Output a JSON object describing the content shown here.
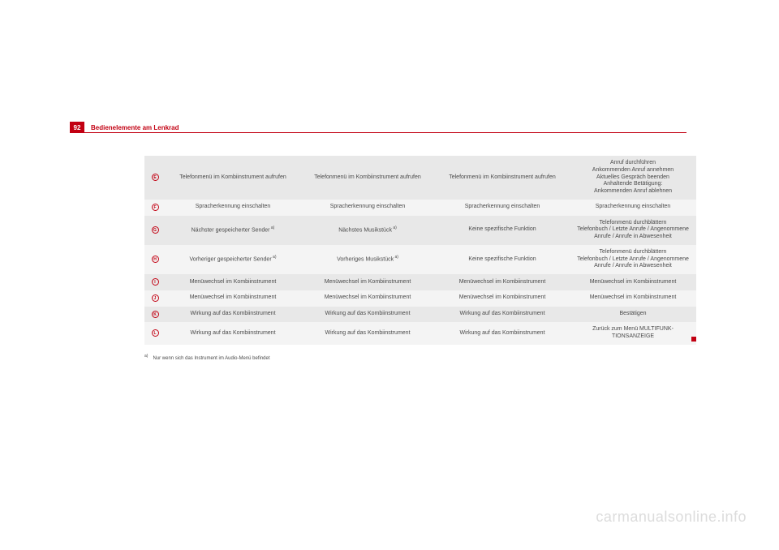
{
  "page_number": "92",
  "section_title": "Bedienelemente am Lenkrad",
  "footnote_marker": "a)",
  "footnote_text": "Nur wenn sich das Instrument im Audio-Menü befindet",
  "watermark": "carmanualsonline.info",
  "table": {
    "row_colors": {
      "dark": "#e8e8e8",
      "light": "#f4f4f4"
    },
    "icon_color": "#c20012",
    "rows": [
      {
        "shade": "dark",
        "icon_letter": "E",
        "cells": [
          "Telefonmenü im Kombiinstrument auf­rufen",
          "Telefonmenü im Kombiinstrument auf­rufen",
          "Telefonmenü im Kombiinstru­ment aufrufen",
          "Anruf durchführen\nAnkommenden Anruf anneh­men\nAktuelles Gespräch beenden\nAnhaltende Betätigung:\nAnkommenden Anruf ablehnen"
        ]
      },
      {
        "shade": "light",
        "icon_letter": "F",
        "cells": [
          "Spracherkennung einschalten",
          "Spracherkennung einschalten",
          "Spracherkennung einschalten",
          "Spracherkennung einschalten"
        ]
      },
      {
        "shade": "dark",
        "icon_letter": "G",
        "cells_fn": [
          0,
          1
        ],
        "cells": [
          "Nächster gespeicherter Sender",
          "Nächstes Musikstück",
          "Keine spezifische Funktion",
          "Telefonmenü durchblättern\nTelefonbuch / Letzte Anrufe / Angenommene Anrufe / Anrufe in Abwesenheit"
        ]
      },
      {
        "shade": "light",
        "icon_letter": "H",
        "cells_fn": [
          0,
          1
        ],
        "cells": [
          "Vorheriger gespeicherter Sender",
          "Vorheriges Musikstück",
          "Keine spezifische Funktion",
          "Telefonmenü durchblättern\nTelefonbuch / Letzte Anrufe / Angenommene Anrufe / Anrufe in Abwesenheit"
        ]
      },
      {
        "shade": "dark",
        "icon_letter": "I",
        "cells": [
          "Menüwechsel im Kombiinstrument",
          "Menüwechsel im Kombiinstrument",
          "Menüwechsel im Kombiinstru­ment",
          "Menüwechsel im Kombiinstru­ment"
        ]
      },
      {
        "shade": "light",
        "icon_letter": "J",
        "cells": [
          "Menüwechsel im Kombiinstrument",
          "Menüwechsel im Kombiinstrument",
          "Menüwechsel im Kombiinstru­ment",
          "Menüwechsel im Kombiinstru­ment"
        ]
      },
      {
        "shade": "dark",
        "icon_letter": "K",
        "cells": [
          "Wirkung auf das Kombiinstrument",
          "Wirkung auf das Kombiinstrument",
          "Wirkung auf das Kombiinstru­ment",
          "Bestätigen"
        ]
      },
      {
        "shade": "light",
        "icon_letter": "L",
        "cells": [
          "Wirkung auf das Kombiinstrument",
          "Wirkung auf das Kombiinstrument",
          "Wirkung auf das Kombiinstru­ment",
          "Zurück zum Menü MULTIFUNK­TIONSANZEIGE"
        ]
      }
    ]
  }
}
